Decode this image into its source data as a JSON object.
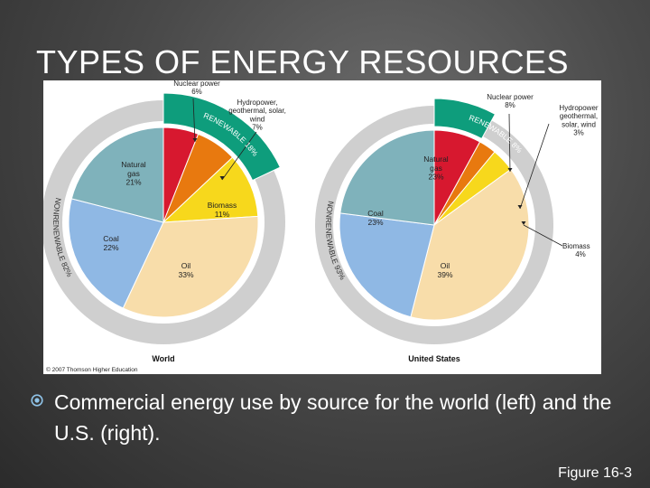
{
  "slide": {
    "title": "TYPES OF ENERGY RESOURCES",
    "bullet": "Commercial energy use by source for the world (left) and the U.S. (right).",
    "figure_ref": "Figure 16-3",
    "credit": "© 2007 Thomson Higher Education"
  },
  "colors": {
    "background": "#3c3c3c",
    "renewable_ring": "#0e9d7c",
    "nonrenewable_ring": "#cfcfcf",
    "nuclear": "#d7182f",
    "hydro": "#e8790f",
    "biomass": "#f7d81c",
    "oil": "#f8ddaa",
    "coal": "#8fb8e4",
    "natural_gas": "#7fb2bb"
  },
  "chart_data": [
    {
      "type": "pie",
      "title": "World",
      "slices": [
        {
          "key": "nuclear",
          "label": "Nuclear power",
          "value": 6,
          "value_label": "6%"
        },
        {
          "key": "hydro",
          "label": "Hydropower, geothermal, solar, wind",
          "value": 7,
          "value_label": "7%"
        },
        {
          "key": "biomass",
          "label": "Biomass",
          "value": 11,
          "value_label": "11%"
        },
        {
          "key": "oil",
          "label": "Oil",
          "value": 33,
          "value_label": "33%"
        },
        {
          "key": "coal",
          "label": "Coal",
          "value": 22,
          "value_label": "22%"
        },
        {
          "key": "natural_gas",
          "label": "Natural gas",
          "value": 21,
          "value_label": "21%"
        }
      ],
      "ring_labels": {
        "renewable": "RENEWABLE 18%",
        "nonrenewable": "NONRENEWABLE 82%"
      },
      "ring_values": {
        "renewable": 18,
        "nonrenewable": 82
      }
    },
    {
      "type": "pie",
      "title": "United States",
      "slices": [
        {
          "key": "nuclear",
          "label": "Nuclear power",
          "value": 8,
          "value_label": "8%"
        },
        {
          "key": "hydro",
          "label": "Hydropower geothermal, solar, wind",
          "value": 3,
          "value_label": "3%"
        },
        {
          "key": "biomass",
          "label": "Biomass",
          "value": 4,
          "value_label": "4%"
        },
        {
          "key": "oil",
          "label": "Oil",
          "value": 39,
          "value_label": "39%"
        },
        {
          "key": "coal",
          "label": "Coal",
          "value": 23,
          "value_label": "23%"
        },
        {
          "key": "natural_gas",
          "label": "Natural gas",
          "value": 23,
          "value_label": "23%"
        }
      ],
      "ring_labels": {
        "renewable": "RENEWABLE 8%",
        "nonrenewable": "NONRENEWABLE 93%"
      },
      "ring_values": {
        "renewable": 8,
        "nonrenewable": 93
      }
    }
  ]
}
